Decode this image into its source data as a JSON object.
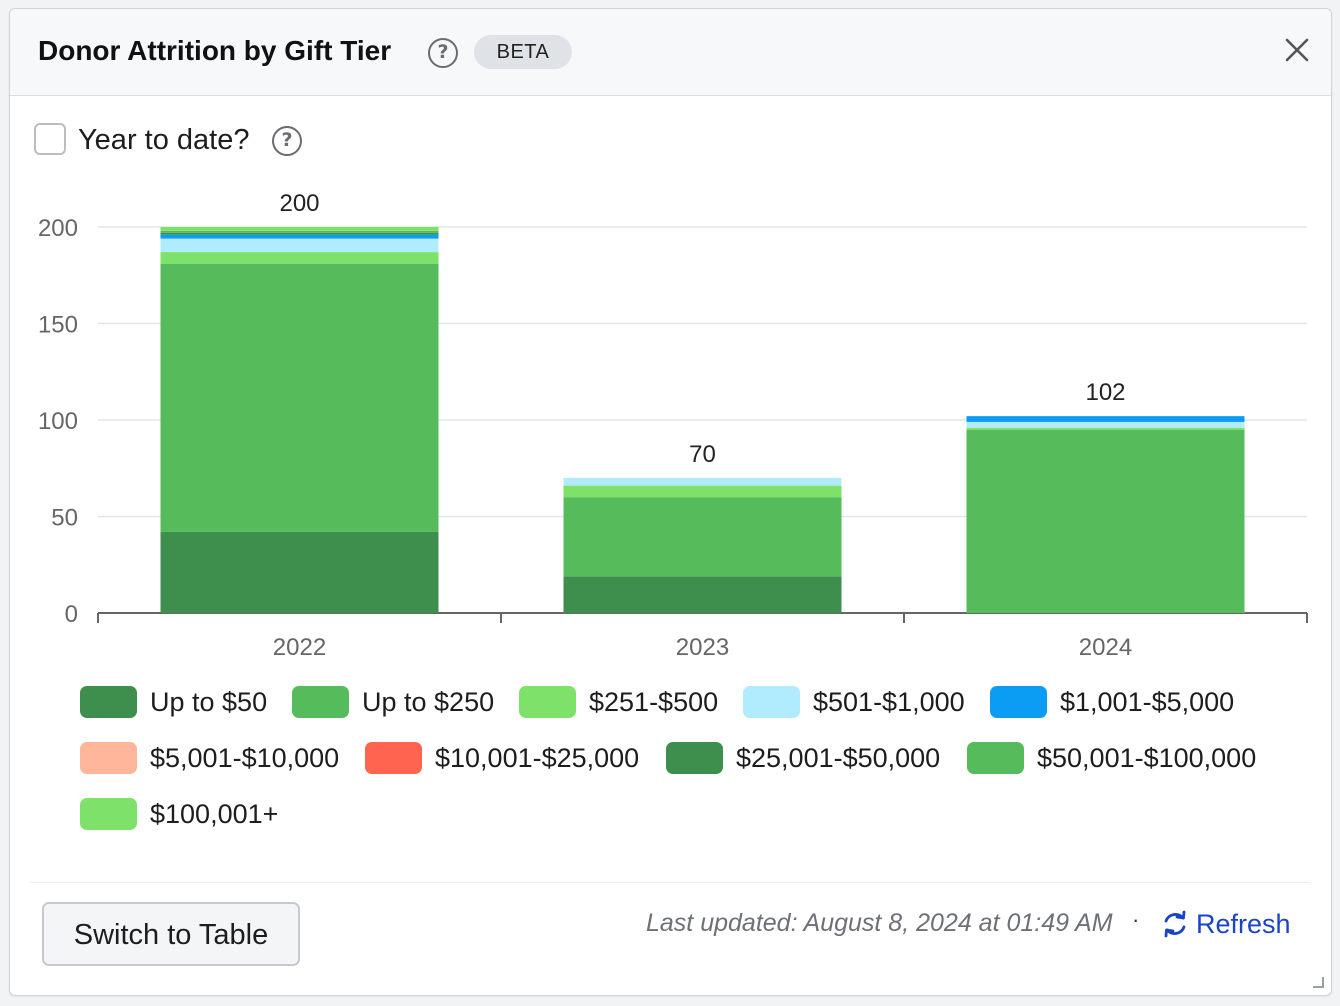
{
  "header": {
    "title": "Donor Attrition by Gift Tier",
    "badge": "BETA"
  },
  "icons": {
    "help": "help-circle-icon",
    "close": "close-icon",
    "refresh": "refresh-icon",
    "resize": "resize-handle-icon"
  },
  "controls": {
    "ytd_label": "Year to date?",
    "ytd_checked": false
  },
  "footer": {
    "switch_label": "Switch to Table",
    "last_updated": "Last updated: August 8, 2024 at 01:49 AM",
    "separator": "·",
    "refresh_label": "Refresh"
  },
  "colors": {
    "Up to $50": "#3e8e4d",
    "Up to $250": "#55bb5b",
    "$251-$500": "#7ee26a",
    "$501-$1,000": "#b0ecfd",
    "$1,001-$5,000": "#0a9df3",
    "$5,001-$10,000": "#ffb69b",
    "$10,001-$25,000": "#ff6450",
    "$25,001-$50,000": "#3e8e4d",
    "$50,001-$100,000": "#55bb5b",
    "$100,001+": "#7ee26a",
    "grid": "#e2e6ea",
    "axis": "#666666",
    "accent": "#1a44c8"
  },
  "chart_data": {
    "type": "bar",
    "stacked": true,
    "categories": [
      "2022",
      "2023",
      "2024"
    ],
    "ylim": [
      0,
      200
    ],
    "yticks": [
      0,
      50,
      100,
      150,
      200
    ],
    "grid": true,
    "legend_position": "bottom",
    "totals": [
      200,
      70,
      102
    ],
    "series": [
      {
        "name": "Up to $50",
        "values": [
          42,
          19,
          0
        ]
      },
      {
        "name": "Up to $250",
        "values": [
          139,
          41,
          95
        ]
      },
      {
        "name": "$251-$500",
        "values": [
          6,
          6,
          1
        ]
      },
      {
        "name": "$501-$1,000",
        "values": [
          7,
          4,
          3
        ]
      },
      {
        "name": "$1,001-$5,000",
        "values": [
          2,
          0,
          3
        ]
      },
      {
        "name": "$5,001-$10,000",
        "values": [
          0,
          0,
          0
        ]
      },
      {
        "name": "$10,001-$25,000",
        "values": [
          0,
          0,
          0
        ]
      },
      {
        "name": "$25,001-$50,000",
        "values": [
          1,
          0,
          0
        ]
      },
      {
        "name": "$50,001-$100,000",
        "values": [
          1,
          0,
          0
        ]
      },
      {
        "name": "$100,001+",
        "values": [
          2,
          0,
          0
        ]
      }
    ]
  }
}
